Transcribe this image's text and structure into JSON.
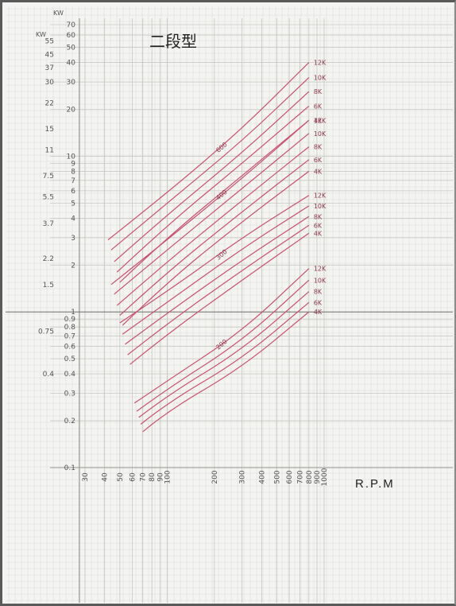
{
  "chart_data": {
    "type": "line",
    "title": "二段型",
    "xlabel": "R.P.M",
    "ylabel_kw_primary": "KW",
    "ylabel_kw_secondary": "KW",
    "x_scale": "log",
    "y_scale": "log",
    "xlim": [
      40,
      1000
    ],
    "ylim": [
      0.1,
      70
    ],
    "grid": true,
    "x_ticks": [
      "30",
      "40",
      "50",
      "60",
      "70",
      "80",
      "90",
      "100",
      "200",
      "300",
      "400",
      "500",
      "600",
      "700",
      "800",
      "900",
      "1000"
    ],
    "y_ticks_primary": [
      "70",
      "60",
      "50",
      "40",
      "30",
      "20",
      "10",
      "9",
      "8",
      "7",
      "6",
      "5",
      "4",
      "3",
      "2",
      "1",
      "0.9",
      "0.8",
      "0.7",
      "0.6",
      "0.5",
      "0.4",
      "0.3",
      "0.2",
      "0.1"
    ],
    "y_ticks_secondary": [
      "55",
      "45",
      "37",
      "30",
      "22",
      "15",
      "11",
      "7.5",
      "5.5",
      "3.7",
      "2.2",
      "1.5",
      "0.75",
      "0.4"
    ],
    "groups": [
      {
        "label": "600",
        "ratio_labels": [
          "12K",
          "10K",
          "8K",
          "6K",
          "4K"
        ],
        "series": [
          {
            "x": [
              42,
              100,
              300,
              800
            ],
            "y": [
              2.9,
              5.8,
              15,
              40
            ]
          },
          {
            "x": [
              44,
              100,
              300,
              800
            ],
            "y": [
              2.5,
              5.0,
              12.5,
              32
            ]
          },
          {
            "x": [
              46,
              100,
              300,
              800
            ],
            "y": [
              2.1,
              4.2,
              10.5,
              26
            ]
          },
          {
            "x": [
              48,
              100,
              300,
              800
            ],
            "y": [
              1.8,
              3.6,
              9,
              21
            ]
          },
          {
            "x": [
              50,
              100,
              300,
              800
            ],
            "y": [
              1.55,
              3.0,
              7.5,
              17
            ]
          }
        ]
      },
      {
        "label": "400",
        "ratio_labels": [
          "12K",
          "10K",
          "8K",
          "6K",
          "4K"
        ],
        "series": [
          {
            "x": [
              44,
              100,
              300,
              800
            ],
            "y": [
              1.5,
              2.9,
              7.2,
              17
            ]
          },
          {
            "x": [
              46,
              100,
              300,
              800
            ],
            "y": [
              1.3,
              2.5,
              6.2,
              14
            ]
          },
          {
            "x": [
              48,
              100,
              300,
              800
            ],
            "y": [
              1.1,
              2.1,
              5.2,
              11.5
            ]
          },
          {
            "x": [
              50,
              100,
              300,
              800
            ],
            "y": [
              0.95,
              1.8,
              4.4,
              9.5
            ]
          },
          {
            "x": [
              52,
              100,
              300,
              800
            ],
            "y": [
              0.82,
              1.55,
              3.8,
              8.0
            ]
          }
        ]
      },
      {
        "label": "300",
        "ratio_labels": [
          "12K",
          "10K",
          "8K",
          "6K",
          "4K"
        ],
        "series": [
          {
            "x": [
              50,
              100,
              300,
              800
            ],
            "y": [
              0.85,
              1.35,
              3.0,
              5.6
            ]
          },
          {
            "x": [
              52,
              100,
              300,
              800
            ],
            "y": [
              0.72,
              1.15,
              2.55,
              4.8
            ]
          },
          {
            "x": [
              54,
              100,
              300,
              800
            ],
            "y": [
              0.62,
              0.98,
              2.15,
              4.1
            ]
          },
          {
            "x": [
              56,
              100,
              300,
              800
            ],
            "y": [
              0.53,
              0.84,
              1.85,
              3.6
            ]
          },
          {
            "x": [
              58,
              100,
              300,
              800
            ],
            "y": [
              0.46,
              0.72,
              1.6,
              3.2
            ]
          }
        ]
      },
      {
        "label": "200",
        "ratio_labels": [
          "12K",
          "10K",
          "8K",
          "6K",
          "4K"
        ],
        "series": [
          {
            "x": [
              62,
              100,
              300,
              800
            ],
            "y": [
              0.26,
              0.36,
              0.75,
              1.9
            ]
          },
          {
            "x": [
              64,
              100,
              300,
              800
            ],
            "y": [
              0.23,
              0.32,
              0.65,
              1.6
            ]
          },
          {
            "x": [
              66,
              100,
              300,
              800
            ],
            "y": [
              0.21,
              0.29,
              0.57,
              1.35
            ]
          },
          {
            "x": [
              68,
              100,
              300,
              800
            ],
            "y": [
              0.19,
              0.26,
              0.5,
              1.15
            ]
          },
          {
            "x": [
              70,
              100,
              300,
              800
            ],
            "y": [
              0.17,
              0.23,
              0.44,
              1.0
            ]
          }
        ]
      }
    ]
  }
}
